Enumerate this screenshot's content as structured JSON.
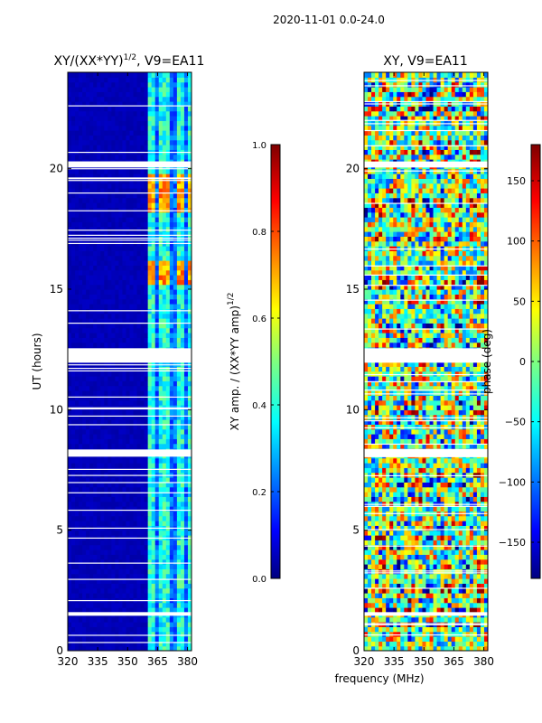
{
  "figure_title": "2020-11-01 0.0-24.0",
  "chart_data": [
    {
      "type": "heatmap",
      "name": "amplitude",
      "title": "XY/(XX*YY)",
      "title_superscript": "1/2",
      "title_suffix": ", V9=EA11",
      "xlabel": "",
      "ylabel": "UT (hours)",
      "xlim": [
        320,
        382
      ],
      "ylim": [
        0,
        24
      ],
      "x_ticks": [
        320,
        335,
        350,
        365,
        380
      ],
      "y_ticks": [
        0,
        5,
        10,
        15,
        20
      ],
      "colorbar": {
        "label": "XY amp. / (XX*YY amp)",
        "label_superscript": "1/2",
        "range": [
          0.0,
          1.0
        ],
        "ticks": [
          "0.0",
          "0.2",
          "0.4",
          "0.6",
          "0.8",
          "1.0"
        ]
      },
      "flagged_time_gaps_hours": [
        [
          1.45,
          1.6
        ],
        [
          8.05,
          8.35
        ],
        [
          11.95,
          12.55
        ],
        [
          20.05,
          20.3
        ]
      ],
      "bright_channels_mhz": [
        [
          360,
          364
        ],
        [
          366,
          371
        ],
        [
          374,
          378
        ],
        [
          380,
          382
        ]
      ],
      "high_amplitude_time_ranges_hours": [
        [
          15.3,
          16.2
        ],
        [
          18.3,
          19.9
        ]
      ],
      "values": "low (~0.05) outside 360-382 MHz; ~0.3-0.5 in bright channels; ~0.6-0.8 in high-amplitude ranges"
    },
    {
      "type": "heatmap",
      "name": "phase",
      "title": "XY, V9=EA11",
      "xlabel": "frequency (MHz)",
      "ylabel": "",
      "xlim": [
        320,
        382
      ],
      "ylim": [
        0,
        24
      ],
      "x_ticks": [
        320,
        335,
        350,
        365,
        380
      ],
      "y_ticks": [
        0,
        5,
        10,
        15,
        20
      ],
      "colorbar": {
        "label": "phase (deg)",
        "range": [
          -180,
          180
        ],
        "ticks": [
          "−150",
          "−100",
          "−50",
          "0",
          "50",
          "100",
          "150"
        ]
      },
      "flagged_time_gaps_hours": [
        [
          1.45,
          1.6
        ],
        [
          8.05,
          8.35
        ],
        [
          11.95,
          12.55
        ],
        [
          20.05,
          20.3
        ]
      ],
      "values": "noisy phases spanning −180 to 180 deg with horizontal banding"
    }
  ],
  "colors": {
    "background": "#ffffff",
    "axis": "#000000",
    "colormap": "jet"
  }
}
